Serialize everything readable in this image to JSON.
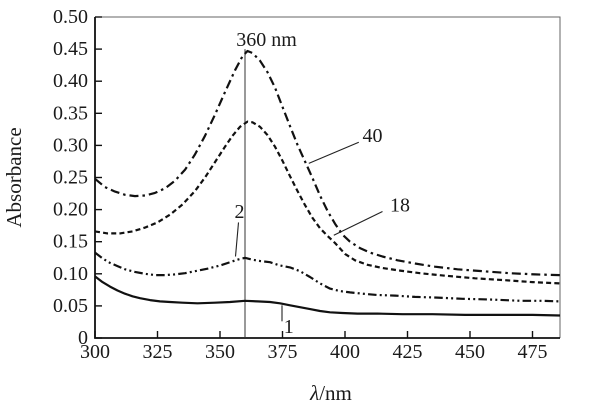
{
  "figure": {
    "background": "#ffffff",
    "ink_color": "#111111"
  },
  "chart_data": {
    "type": "line",
    "title": "",
    "ylabel": "Absorbance",
    "xlabel": {
      "symbol": "λ",
      "unit": "/nm"
    },
    "xlim": [
      300,
      486
    ],
    "ylim": [
      0,
      0.5
    ],
    "grid": false,
    "legend": "none (curves labeled inline with leader lines)",
    "xticks": [
      {
        "v": 300,
        "label": "300"
      },
      {
        "v": 325,
        "label": "325"
      },
      {
        "v": 350,
        "label": "350"
      },
      {
        "v": 375,
        "label": "375"
      },
      {
        "v": 400,
        "label": "400"
      },
      {
        "v": 425,
        "label": "425"
      },
      {
        "v": 450,
        "label": "450"
      },
      {
        "v": 475,
        "label": "475"
      }
    ],
    "yticks": [
      {
        "v": 0.0,
        "label": "0"
      },
      {
        "v": 0.05,
        "label": "0.05"
      },
      {
        "v": 0.1,
        "label": "0.10"
      },
      {
        "v": 0.15,
        "label": "0.15"
      },
      {
        "v": 0.2,
        "label": "0.20"
      },
      {
        "v": 0.25,
        "label": "0.25"
      },
      {
        "v": 0.3,
        "label": "0.30"
      },
      {
        "v": 0.35,
        "label": "0.35"
      },
      {
        "v": 0.4,
        "label": "0.40"
      },
      {
        "v": 0.45,
        "label": "0.45"
      },
      {
        "v": 0.5,
        "label": "0.50"
      }
    ],
    "marker": {
      "x": 360,
      "line_top": 0.45,
      "label": "360 nm",
      "label_x": 356.5,
      "label_y": 0.455
    },
    "series": [
      {
        "name": "40",
        "dash": "dash-dot",
        "points": [
          [
            300,
            0.248
          ],
          [
            304,
            0.235
          ],
          [
            308,
            0.228
          ],
          [
            312,
            0.223
          ],
          [
            316,
            0.221
          ],
          [
            320,
            0.222
          ],
          [
            324,
            0.226
          ],
          [
            328,
            0.233
          ],
          [
            332,
            0.245
          ],
          [
            336,
            0.262
          ],
          [
            340,
            0.286
          ],
          [
            344,
            0.315
          ],
          [
            348,
            0.348
          ],
          [
            352,
            0.383
          ],
          [
            356,
            0.417
          ],
          [
            359,
            0.439
          ],
          [
            361,
            0.447
          ],
          [
            363,
            0.444
          ],
          [
            366,
            0.432
          ],
          [
            369,
            0.414
          ],
          [
            372,
            0.39
          ],
          [
            375,
            0.36
          ],
          [
            378,
            0.33
          ],
          [
            381,
            0.301
          ],
          [
            384,
            0.275
          ],
          [
            387,
            0.249
          ],
          [
            390,
            0.222
          ],
          [
            393,
            0.198
          ],
          [
            396,
            0.178
          ],
          [
            399,
            0.161
          ],
          [
            402,
            0.15
          ],
          [
            406,
            0.14
          ],
          [
            410,
            0.133
          ],
          [
            415,
            0.127
          ],
          [
            421,
            0.121
          ],
          [
            428,
            0.116
          ],
          [
            436,
            0.111
          ],
          [
            445,
            0.107
          ],
          [
            455,
            0.104
          ],
          [
            466,
            0.101
          ],
          [
            476,
            0.099
          ],
          [
            486,
            0.098
          ]
        ]
      },
      {
        "name": "18",
        "dash": "dashed",
        "points": [
          [
            300,
            0.166
          ],
          [
            305,
            0.163
          ],
          [
            310,
            0.163
          ],
          [
            315,
            0.166
          ],
          [
            320,
            0.172
          ],
          [
            325,
            0.18
          ],
          [
            330,
            0.192
          ],
          [
            335,
            0.208
          ],
          [
            340,
            0.229
          ],
          [
            344,
            0.25
          ],
          [
            348,
            0.274
          ],
          [
            352,
            0.298
          ],
          [
            355,
            0.315
          ],
          [
            358,
            0.329
          ],
          [
            361,
            0.337
          ],
          [
            363,
            0.336
          ],
          [
            366,
            0.329
          ],
          [
            369,
            0.316
          ],
          [
            372,
            0.298
          ],
          [
            375,
            0.276
          ],
          [
            378,
            0.252
          ],
          [
            381,
            0.229
          ],
          [
            384,
            0.207
          ],
          [
            387,
            0.187
          ],
          [
            390,
            0.171
          ],
          [
            393,
            0.159
          ],
          [
            396,
            0.148
          ],
          [
            400,
            0.131
          ],
          [
            404,
            0.121
          ],
          [
            409,
            0.114
          ],
          [
            415,
            0.109
          ],
          [
            422,
            0.105
          ],
          [
            430,
            0.101
          ],
          [
            440,
            0.097
          ],
          [
            452,
            0.093
          ],
          [
            464,
            0.09
          ],
          [
            475,
            0.087
          ],
          [
            486,
            0.085
          ]
        ]
      },
      {
        "name": "2",
        "dash": "dash-dot-dot",
        "points": [
          [
            300,
            0.133
          ],
          [
            303,
            0.124
          ],
          [
            306,
            0.117
          ],
          [
            309,
            0.112
          ],
          [
            312,
            0.107
          ],
          [
            316,
            0.103
          ],
          [
            320,
            0.1
          ],
          [
            324,
            0.098
          ],
          [
            328,
            0.098
          ],
          [
            332,
            0.099
          ],
          [
            336,
            0.101
          ],
          [
            340,
            0.104
          ],
          [
            345,
            0.108
          ],
          [
            350,
            0.113
          ],
          [
            354,
            0.118
          ],
          [
            357,
            0.122
          ],
          [
            360,
            0.125
          ],
          [
            363,
            0.122
          ],
          [
            366,
            0.12
          ],
          [
            370,
            0.118
          ],
          [
            374,
            0.113
          ],
          [
            378,
            0.11
          ],
          [
            382,
            0.104
          ],
          [
            386,
            0.095
          ],
          [
            390,
            0.085
          ],
          [
            394,
            0.077
          ],
          [
            398,
            0.073
          ],
          [
            402,
            0.071
          ],
          [
            407,
            0.069
          ],
          [
            413,
            0.067
          ],
          [
            420,
            0.066
          ],
          [
            428,
            0.064
          ],
          [
            437,
            0.063
          ],
          [
            447,
            0.061
          ],
          [
            458,
            0.06
          ],
          [
            470,
            0.058
          ],
          [
            479,
            0.058
          ],
          [
            486,
            0.057
          ]
        ]
      },
      {
        "name": "1",
        "dash": "solid",
        "points": [
          [
            300,
            0.096
          ],
          [
            303,
            0.087
          ],
          [
            306,
            0.08
          ],
          [
            309,
            0.074
          ],
          [
            312,
            0.069
          ],
          [
            315,
            0.065
          ],
          [
            318,
            0.062
          ],
          [
            322,
            0.059
          ],
          [
            326,
            0.057
          ],
          [
            330,
            0.056
          ],
          [
            335,
            0.055
          ],
          [
            341,
            0.054
          ],
          [
            348,
            0.055
          ],
          [
            354,
            0.056
          ],
          [
            360,
            0.058
          ],
          [
            365,
            0.057
          ],
          [
            370,
            0.056
          ],
          [
            374,
            0.054
          ],
          [
            378,
            0.051
          ],
          [
            382,
            0.048
          ],
          [
            386,
            0.045
          ],
          [
            390,
            0.042
          ],
          [
            394,
            0.04
          ],
          [
            399,
            0.039
          ],
          [
            405,
            0.038
          ],
          [
            413,
            0.038
          ],
          [
            423,
            0.037
          ],
          [
            435,
            0.037
          ],
          [
            448,
            0.036
          ],
          [
            462,
            0.036
          ],
          [
            475,
            0.036
          ],
          [
            486,
            0.035
          ]
        ]
      }
    ],
    "annotations": [
      {
        "id": "40",
        "text": "40",
        "x": 411,
        "y": 0.315,
        "leader": [
          [
            405.5,
            0.305
          ],
          [
            385.5,
            0.272
          ]
        ]
      },
      {
        "id": "18",
        "text": "18",
        "x": 422,
        "y": 0.206,
        "leader": [
          [
            415,
            0.197
          ],
          [
            395.5,
            0.16
          ]
        ]
      },
      {
        "id": "2",
        "text": "2",
        "x": 357.8,
        "y": 0.196,
        "leader": [
          [
            357.4,
            0.18
          ],
          [
            356.2,
            0.127
          ]
        ]
      },
      {
        "id": "1",
        "text": "1",
        "x": 377.5,
        "y": 0.017,
        "leader": [
          [
            374.8,
            0.051
          ],
          [
            374.8,
            0.026
          ]
        ]
      }
    ]
  }
}
